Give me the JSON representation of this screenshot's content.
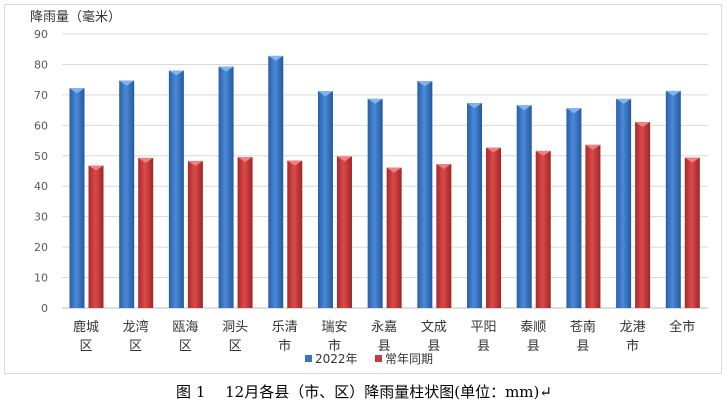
{
  "chart_data": {
    "type": "bar",
    "title": "",
    "ylabel": "降雨量（毫米）",
    "xlabel": "",
    "ylim": [
      0,
      90
    ],
    "yticks": [
      0,
      10,
      20,
      30,
      40,
      50,
      60,
      70,
      80,
      90
    ],
    "grid": true,
    "legend_position": "bottom",
    "categories": [
      [
        "鹿城",
        "区"
      ],
      [
        "龙湾",
        "区"
      ],
      [
        "瓯海",
        "区"
      ],
      [
        "洞头",
        "区"
      ],
      [
        "乐清",
        "市"
      ],
      [
        "瑞安",
        "市"
      ],
      [
        "永嘉",
        "县"
      ],
      [
        "文成",
        "县"
      ],
      [
        "平阳",
        "县"
      ],
      [
        "泰顺",
        "县"
      ],
      [
        "苍南",
        "县"
      ],
      [
        "龙港",
        "市"
      ],
      [
        "全市",
        ""
      ]
    ],
    "series": [
      {
        "name": "2022年",
        "color": "#3a75c4",
        "values": [
          72.2,
          74.7,
          78.0,
          79.3,
          82.8,
          71.2,
          68.7,
          74.5,
          67.3,
          66.6,
          65.6,
          68.7,
          71.3
        ]
      },
      {
        "name": "常年同期",
        "color": "#c83a3a",
        "values": [
          46.8,
          49.3,
          48.3,
          49.6,
          48.4,
          49.8,
          46.1,
          47.3,
          52.7,
          51.6,
          53.6,
          61.1,
          49.4
        ]
      }
    ]
  },
  "caption": "图 1　 12月各县（市、区）降雨量柱状图(单位：mm)↵"
}
